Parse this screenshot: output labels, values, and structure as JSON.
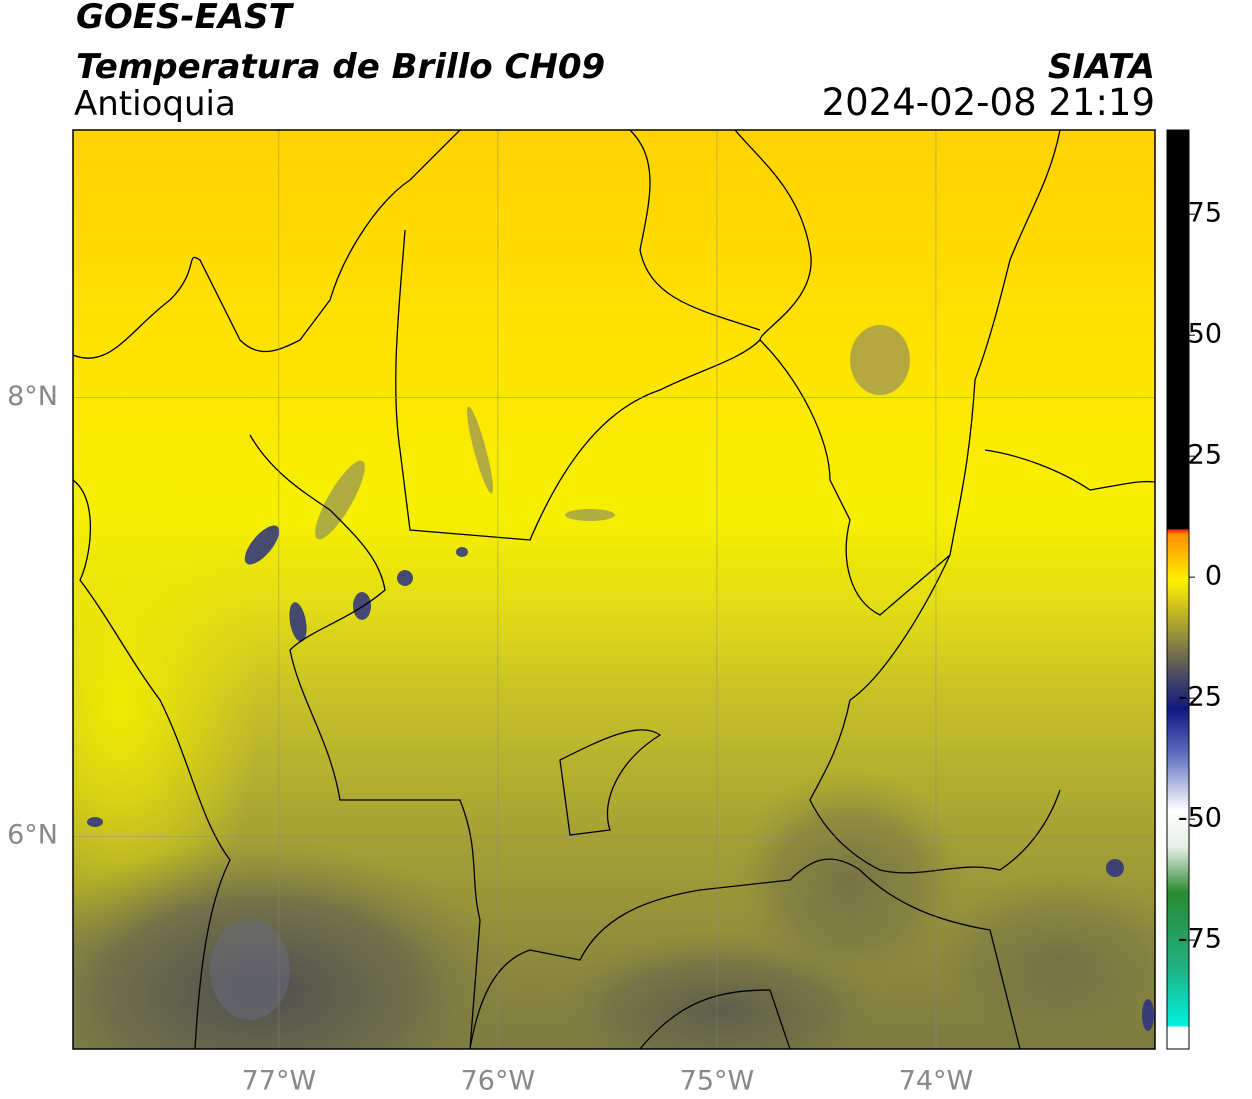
{
  "chart_data": {
    "type": "map",
    "title": "GOES-EAST",
    "subtitle": "Temperatura de Brillo CH09",
    "region": "Antioquia",
    "source": "SIATA",
    "timestamp": "2024-02-08 21:19",
    "xlim": [
      -77.94,
      -73.0
    ],
    "ylim": [
      5.03,
      9.22
    ],
    "xticks": [
      {
        "value": -77,
        "label": "77°W"
      },
      {
        "value": -76,
        "label": "76°W"
      },
      {
        "value": -75,
        "label": "75°W"
      },
      {
        "value": -74,
        "label": "74°W"
      }
    ],
    "yticks": [
      {
        "value": 6,
        "label": "6°N"
      },
      {
        "value": 8,
        "label": "8°N"
      }
    ],
    "grid": true,
    "colorbar": {
      "lim": [
        -97.5,
        92.4
      ],
      "ticks": [
        75,
        50,
        25,
        0,
        -25,
        -50,
        -75
      ]
    }
  }
}
